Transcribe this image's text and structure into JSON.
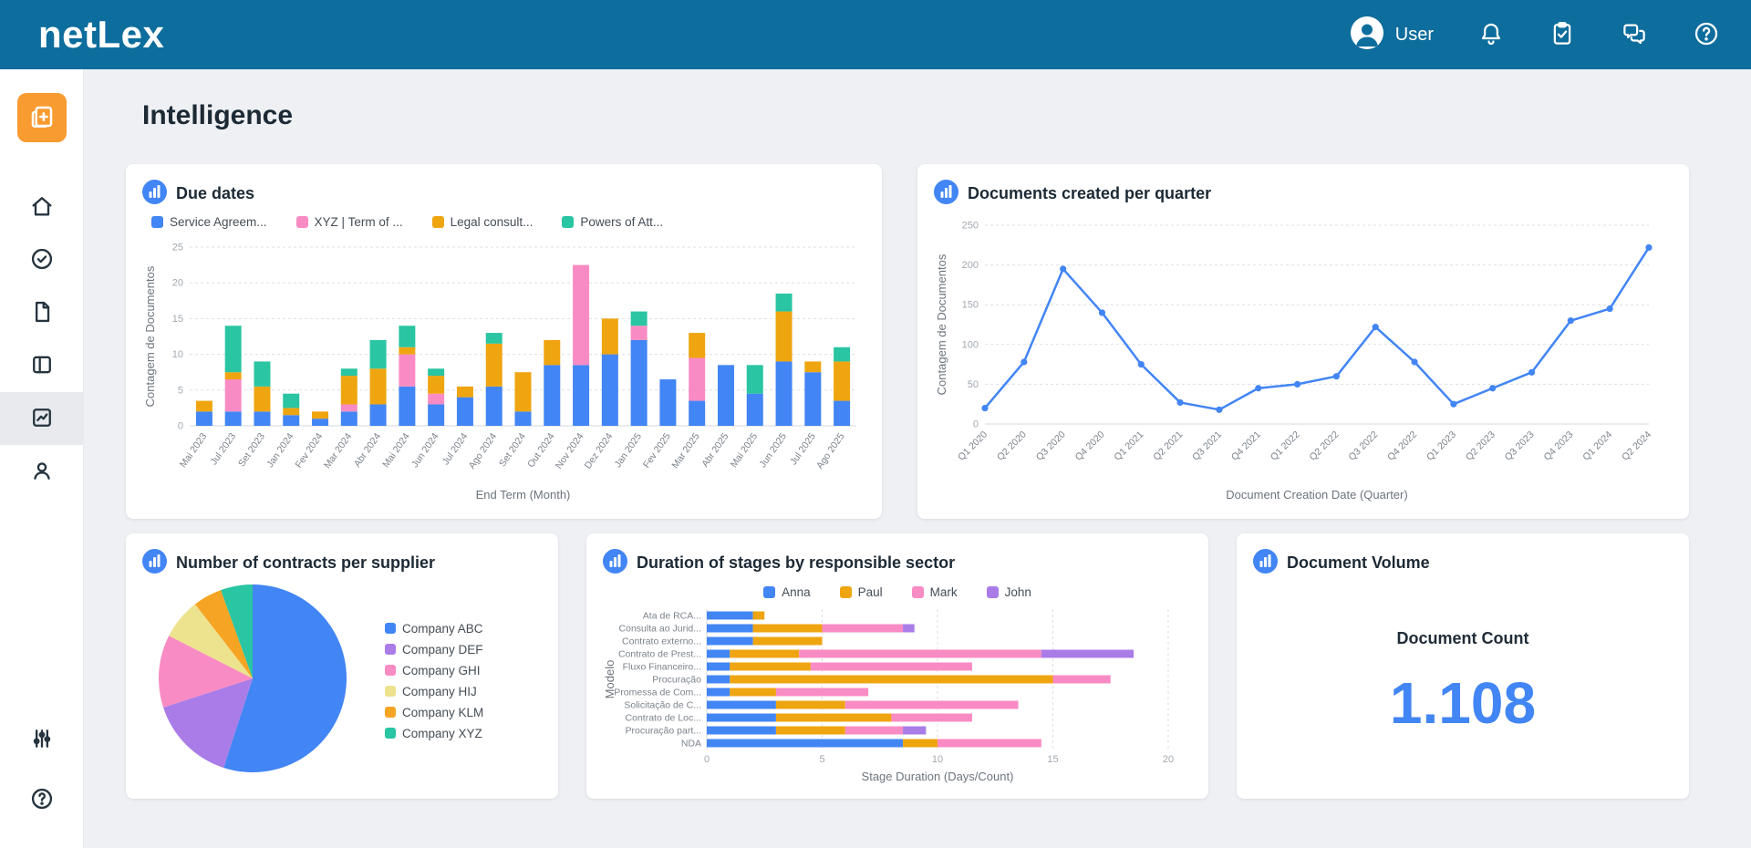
{
  "theme": {
    "header_bg": "#0d6d9d",
    "page_bg": "#eef0f4",
    "card_bg": "#ffffff",
    "accent_orange": "#f89b30",
    "primary_blue": "#4285f4",
    "metric_value_color": "#4285f4"
  },
  "header": {
    "logo": "netLex",
    "user": "User"
  },
  "page_title": "Intelligence",
  "cards": {
    "due_dates": {
      "title": "Due dates",
      "chart_data": {
        "type": "stacked_bar",
        "title": "Due dates",
        "xlabel": "End Term (Month)",
        "ylabel": "Contagem de Documentos",
        "ylim": [
          0,
          25
        ],
        "yticks": [
          0,
          5,
          10,
          15,
          20,
          25
        ],
        "grid": "dashed-horizontal",
        "legend_position": "top",
        "categories": [
          "Mai 2023",
          "Jul 2023",
          "Set 2023",
          "Jan 2024",
          "Fev 2024",
          "Mar 2024",
          "Abr 2024",
          "Mai 2024",
          "Jun 2024",
          "Jul 2024",
          "Ago 2024",
          "Set 2024",
          "Out 2024",
          "Nov 2024",
          "Dez 2024",
          "Jan 2025",
          "Fev 2025",
          "Mar 2025",
          "Abr 2025",
          "Mai 2025",
          "Jun 2025",
          "Jul 2025",
          "Ago 2025"
        ],
        "series": [
          {
            "name": "Service Agreem...",
            "color": "#4285f4",
            "values": [
              2,
              2,
              2,
              1.5,
              1,
              2,
              3,
              5.5,
              3,
              4,
              5.5,
              2,
              8.5,
              8.5,
              10,
              12,
              6.5,
              3.5,
              8.5,
              4.5,
              9,
              7.5,
              3.5
            ]
          },
          {
            "name": "XYZ | Term of ...",
            "color": "#f98bc4",
            "values": [
              0,
              4.5,
              0,
              0,
              0,
              1,
              0,
              4.5,
              1.5,
              0,
              0,
              0,
              0,
              14,
              0,
              2,
              0,
              6,
              0,
              0,
              0,
              0,
              0
            ]
          },
          {
            "name": "Legal consult...",
            "color": "#efa510",
            "values": [
              1.5,
              1,
              3.5,
              1,
              1,
              4,
              5,
              1,
              2.5,
              1.5,
              6,
              5.5,
              3.5,
              0,
              5,
              0,
              0,
              3.5,
              0,
              0,
              7,
              1.5,
              5.5
            ]
          },
          {
            "name": "Powers of Att...",
            "color": "#2ac5a2",
            "values": [
              0,
              6.5,
              3.5,
              2,
              0,
              1,
              4,
              3,
              1,
              0,
              1.5,
              0,
              0,
              0,
              0,
              2,
              0,
              0,
              0,
              4,
              2.5,
              0,
              2
            ]
          }
        ]
      }
    },
    "docs_per_quarter": {
      "title": "Documents created per quarter",
      "chart_data": {
        "type": "line",
        "xlabel": "Document Creation Date (Quarter)",
        "ylabel": "Contagem de Documentos",
        "ylim": [
          0,
          250
        ],
        "yticks": [
          0,
          50,
          100,
          150,
          200,
          250
        ],
        "grid": "dashed-horizontal",
        "color": "#4285f4",
        "categories": [
          "Q1 2020",
          "Q2 2020",
          "Q3 2020",
          "Q4 2020",
          "Q1 2021",
          "Q2 2021",
          "Q3 2021",
          "Q4 2021",
          "Q1 2022",
          "Q2 2022",
          "Q3 2022",
          "Q4 2022",
          "Q1 2023",
          "Q2 2023",
          "Q3 2023",
          "Q4 2023",
          "Q1 2024",
          "Q2 2024"
        ],
        "values": [
          20,
          78,
          195,
          140,
          75,
          27,
          18,
          45,
          50,
          60,
          122,
          78,
          25,
          45,
          65,
          130,
          145,
          222
        ]
      }
    },
    "contracts_per_supplier": {
      "title": "Number of contracts per supplier",
      "chart_data": {
        "type": "pie",
        "legend_position": "right",
        "labels": [
          "Company ABC",
          "Company DEF",
          "Company GHI",
          "Company HIJ",
          "Company KLM",
          "Company XYZ"
        ],
        "values": [
          55,
          15,
          12.5,
          7,
          5,
          5.5
        ],
        "colors": [
          "#4285f4",
          "#a97ce8",
          "#f98bc4",
          "#ede28e",
          "#f6a423",
          "#2ac5a2"
        ]
      }
    },
    "stage_duration": {
      "title": "Duration of stages by responsible sector",
      "chart_data": {
        "type": "h_stacked_bar",
        "xlabel": "Stage Duration (Days/Count)",
        "ylabel": "Modelo",
        "xlim": [
          0,
          20
        ],
        "xticks": [
          0,
          5,
          10,
          15,
          20
        ],
        "grid": "dashed-vertical",
        "legend_position": "top",
        "categories": [
          "Ata de RCA...",
          "Consulta ao Jurid...",
          "Contrato externo...",
          "Contrato de Prest...",
          "Fluxo Financeiro...",
          "Procuração",
          "Promessa de Com...",
          "Solicitação de C...",
          "Contrato de Loc...",
          "Procuração part...",
          "NDA"
        ],
        "series": [
          {
            "name": "Anna",
            "color": "#4285f4",
            "values": [
              2,
              2,
              2,
              1,
              1,
              1,
              1,
              3,
              3,
              3,
              8.5
            ]
          },
          {
            "name": "Paul",
            "color": "#efa510",
            "values": [
              0.5,
              3,
              3,
              3,
              3.5,
              14,
              2,
              3,
              5,
              3,
              1.5
            ]
          },
          {
            "name": "Mark",
            "color": "#f98bc4",
            "values": [
              0,
              3.5,
              0,
              10.5,
              7,
              2.5,
              4,
              7.5,
              3.5,
              2.5,
              4.5
            ]
          },
          {
            "name": "John",
            "color": "#a97ce8",
            "values": [
              0,
              0.5,
              0,
              4,
              0,
              0,
              0,
              0,
              0,
              1,
              0
            ]
          }
        ]
      }
    },
    "volume": {
      "title": "Document Volume",
      "metric_label": "Document Count",
      "metric_value": "1.108"
    }
  }
}
